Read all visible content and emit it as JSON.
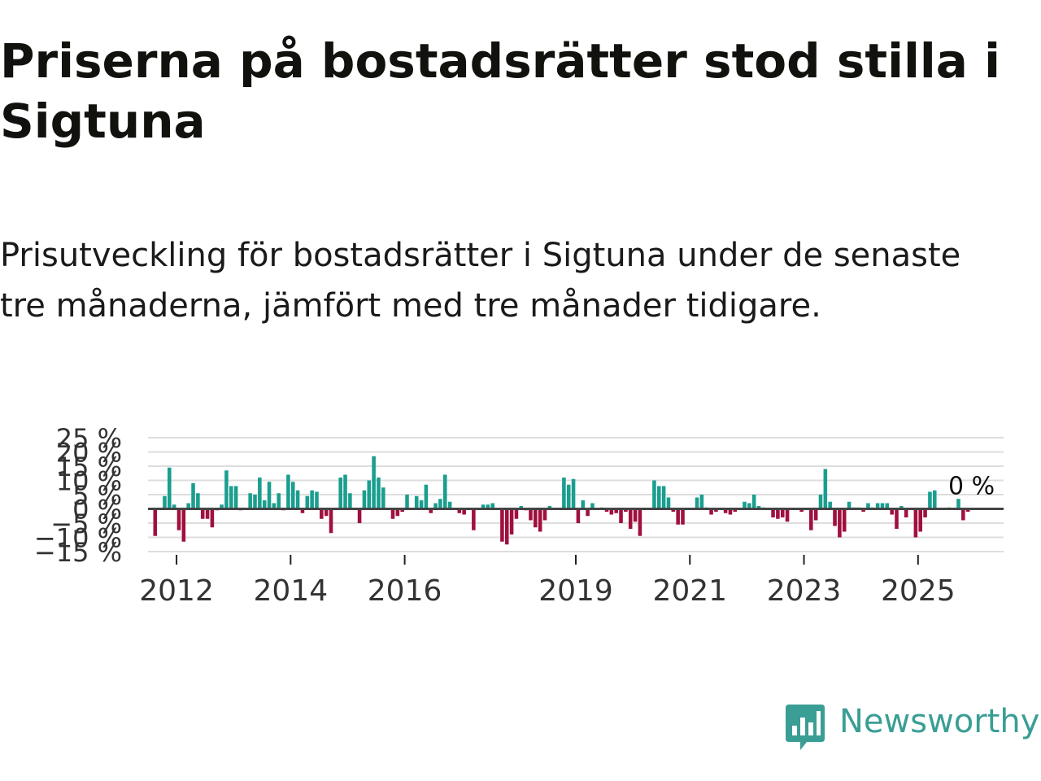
{
  "header": {
    "title": "Priserna på bostadsrätter stod stilla i Sigtuna",
    "subtitle": "Prisutveckling för bostadsrätter i Sigtuna under de senaste tre månaderna, jämfört med tre månader tidigare."
  },
  "brand": {
    "name": "Newsworthy",
    "color": "#3a9e94",
    "icon": "newsworthy-logo-icon"
  },
  "colors": {
    "positive": "#1a9e8f",
    "negative": "#a0103e",
    "grid": "#dddddd",
    "zero_line": "#444444"
  },
  "chart_data": {
    "type": "bar",
    "title": "Priserna på bostadsrätter stod stilla i Sigtuna",
    "xlabel": "",
    "ylabel": "",
    "ylim": [
      -15,
      25
    ],
    "yticks": [
      -15,
      -10,
      -5,
      0,
      5,
      10,
      15,
      20,
      25
    ],
    "ytick_labels": [
      "−15 %",
      "−10 %",
      "−5 %",
      "0 %",
      "5 %",
      "10 %",
      "15 %",
      "20 %",
      "25 %"
    ],
    "xticks": [
      2012,
      2014,
      2016,
      2019,
      2021,
      2023,
      2025
    ],
    "xtick_labels": [
      "2012",
      "2014",
      "2016",
      "2019",
      "2021",
      "2023",
      "2025"
    ],
    "x_start": 2011.5,
    "x_end": 2026.5,
    "period_months": 1,
    "values": [
      0,
      -9.5,
      0,
      4.5,
      14.5,
      1.5,
      -7.5,
      -11.5,
      2,
      9,
      5.5,
      -3.5,
      -3.5,
      -6.5,
      -0.5,
      1.5,
      13.5,
      8,
      8,
      -0.5,
      0,
      5.5,
      5,
      11,
      3,
      9.5,
      2,
      5.5,
      -0.5,
      12,
      9.5,
      6.5,
      -1.5,
      4.5,
      6.5,
      6,
      -3.5,
      -2.5,
      -8.5,
      0,
      11,
      12,
      5.5,
      0,
      -5,
      6.5,
      10,
      18.5,
      11,
      7.5,
      0,
      -3.5,
      -2.5,
      -1,
      5,
      0,
      4.5,
      3,
      8.5,
      -1.5,
      2,
      3.5,
      12,
      2.5,
      0,
      -1.5,
      -2,
      0,
      -7.5,
      0,
      1.5,
      1.5,
      2,
      0,
      -11.5,
      -12.5,
      -9,
      -3.5,
      1,
      -0.5,
      -4,
      -6.5,
      -8,
      -4,
      1,
      0,
      0,
      11,
      8.5,
      10.5,
      -5,
      3,
      -2.5,
      2,
      0,
      0.5,
      -1,
      -2,
      -1.5,
      -5,
      -1,
      -7,
      -4.5,
      -9.5,
      0,
      0,
      10,
      8,
      8,
      4,
      -1,
      -5.5,
      -5.5,
      0,
      0,
      4,
      5,
      0.5,
      -2,
      -1,
      0,
      -1.5,
      -2,
      -1,
      0,
      2.5,
      2,
      5,
      1,
      0.5,
      0,
      -3,
      -3.5,
      -3,
      -4.5,
      0,
      0,
      -1,
      0,
      -7.5,
      -4,
      5,
      14,
      2.5,
      -6,
      -10,
      -8,
      2.5,
      0.5,
      0.5,
      -1,
      2,
      0.5,
      2,
      2,
      2,
      -2,
      -7,
      1,
      -3,
      0,
      -10,
      -8,
      -3,
      6,
      6.5,
      0,
      0,
      0.5,
      0,
      3.5,
      -4,
      -1,
      0
    ],
    "annotations": [
      {
        "label": "0 %",
        "value": 0,
        "position": "last-bar"
      }
    ]
  }
}
